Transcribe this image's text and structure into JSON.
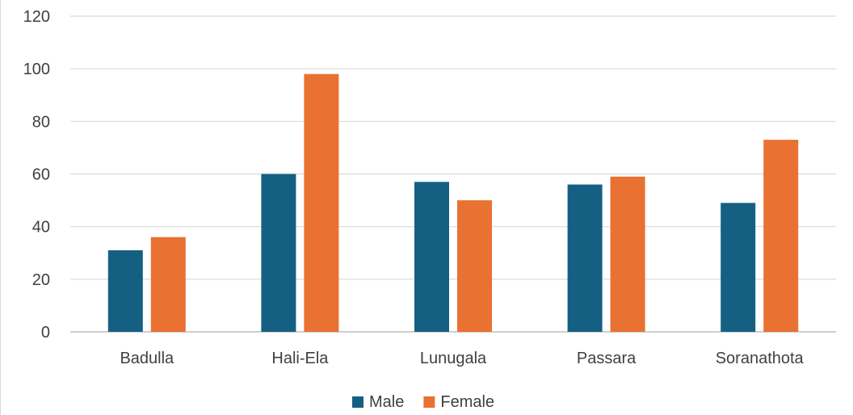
{
  "chart_data": {
    "type": "bar",
    "categories": [
      "Badulla",
      "Hali-Ela",
      "Lunugala",
      "Passara",
      "Soranathota"
    ],
    "series": [
      {
        "name": "Male",
        "values": [
          31,
          60,
          57,
          56,
          49
        ],
        "color": "#156082"
      },
      {
        "name": "Female",
        "values": [
          36,
          98,
          50,
          59,
          73
        ],
        "color": "#e97132"
      }
    ],
    "title": "",
    "xlabel": "",
    "ylabel": "",
    "ylim": [
      0,
      120
    ],
    "yticks": [
      0,
      20,
      40,
      60,
      80,
      100,
      120
    ],
    "grid": true,
    "legend_position": "bottom"
  }
}
